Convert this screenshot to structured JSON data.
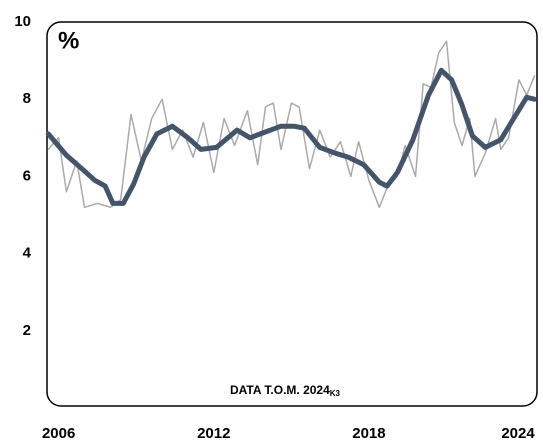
{
  "chart_data": {
    "type": "line",
    "y_label": "%",
    "annotation": {
      "text": "DATA T.O.M. 2024",
      "subscript": "K3"
    },
    "xlim": [
      2005.55,
      2024.5
    ],
    "xticks": [
      2006,
      2012,
      2018,
      2024
    ],
    "ylim": [
      0,
      10
    ],
    "yticks": [
      2,
      4,
      6,
      8,
      10
    ],
    "series": [
      {
        "color": "#aaaaaa",
        "width": 1.5,
        "x": [
          2005.6,
          2006.0,
          2006.3,
          2006.7,
          2007.0,
          2007.5,
          2008.0,
          2008.4,
          2008.8,
          2009.2,
          2009.6,
          2010.0,
          2010.4,
          2010.8,
          2011.2,
          2011.6,
          2012.0,
          2012.4,
          2012.8,
          2013.3,
          2013.7,
          2014.0,
          2014.3,
          2014.6,
          2015.0,
          2015.3,
          2015.7,
          2016.1,
          2016.5,
          2016.9,
          2017.3,
          2017.6,
          2018.0,
          2018.4,
          2018.7,
          2019.1,
          2019.4,
          2019.8,
          2020.1,
          2020.4,
          2020.7,
          2021.0,
          2021.3,
          2021.6,
          2021.9,
          2022.1,
          2022.5,
          2022.9,
          2023.1,
          2023.4,
          2023.8,
          2024.1,
          2024.4
        ],
        "values": [
          6.7,
          7.0,
          5.6,
          6.4,
          5.2,
          5.3,
          5.2,
          5.4,
          7.6,
          6.4,
          7.5,
          8.0,
          6.7,
          7.2,
          6.5,
          7.4,
          6.1,
          7.5,
          6.8,
          7.7,
          6.3,
          7.8,
          7.9,
          6.7,
          7.9,
          7.8,
          6.2,
          7.2,
          6.5,
          6.9,
          6.0,
          6.9,
          5.9,
          5.2,
          5.7,
          6.0,
          6.8,
          6.0,
          8.4,
          8.3,
          9.2,
          9.5,
          7.4,
          6.8,
          7.5,
          6.0,
          6.6,
          7.5,
          6.7,
          7.0,
          8.5,
          8.1,
          8.6
        ]
      },
      {
        "color": "#44546a",
        "width": 5,
        "x": [
          2005.6,
          2006.3,
          2006.9,
          2007.4,
          2007.8,
          2008.1,
          2008.5,
          2008.9,
          2009.3,
          2009.8,
          2010.4,
          2011.0,
          2011.5,
          2012.1,
          2012.9,
          2013.4,
          2013.8,
          2014.6,
          2015.1,
          2015.5,
          2016.1,
          2016.7,
          2017.2,
          2017.8,
          2018.4,
          2018.7,
          2019.1,
          2019.7,
          2020.3,
          2020.8,
          2021.2,
          2021.6,
          2022.0,
          2022.5,
          2023.1,
          2023.6,
          2024.1,
          2024.4
        ],
        "values": [
          7.1,
          6.55,
          6.2,
          5.9,
          5.75,
          5.3,
          5.3,
          5.8,
          6.5,
          7.1,
          7.3,
          7.0,
          6.7,
          6.75,
          7.2,
          7.0,
          7.1,
          7.3,
          7.3,
          7.25,
          6.75,
          6.6,
          6.5,
          6.3,
          5.85,
          5.75,
          6.1,
          6.95,
          8.1,
          8.75,
          8.5,
          7.85,
          7.05,
          6.75,
          6.95,
          7.5,
          8.05,
          8.0
        ]
      }
    ]
  }
}
